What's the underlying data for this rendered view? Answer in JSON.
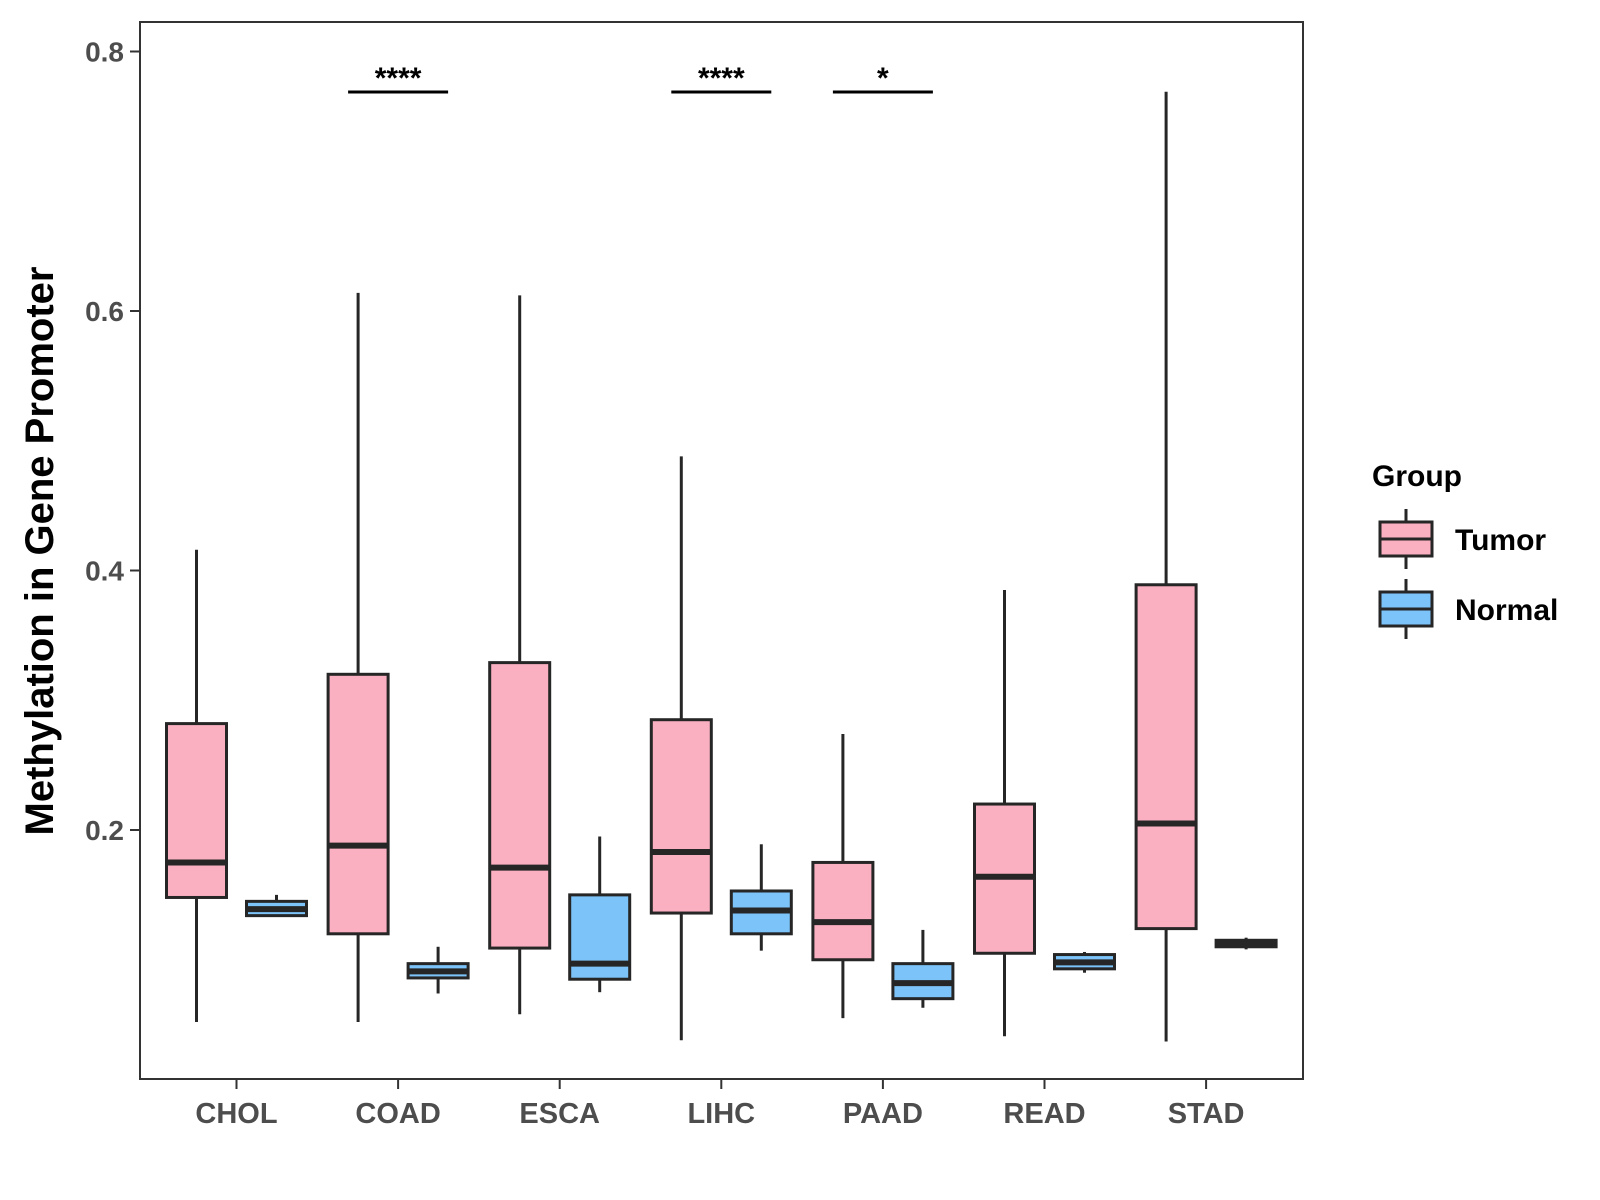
{
  "chart_data": {
    "type": "boxplot",
    "title": "",
    "xlabel": "",
    "ylabel": "Methylation in Gene Promoter",
    "ylim": [
      0.0,
      0.815
    ],
    "yticks": [
      0.2,
      0.4,
      0.6,
      0.8
    ],
    "ytick_labels": [
      "0.2",
      "0.4",
      "0.6",
      "0.8"
    ],
    "categories": [
      "CHOL",
      "COAD",
      "ESCA",
      "LIHC",
      "PAAD",
      "READ",
      "STAD"
    ],
    "grid": false,
    "legend": {
      "title": "Group",
      "position": "right",
      "entries": [
        {
          "name": "Tumor",
          "color": "#fbb0c2"
        },
        {
          "name": "Normal",
          "color": "#7cc3f9"
        }
      ]
    },
    "series": [
      {
        "name": "Tumor",
        "color": "#fbb0c2",
        "boxes": [
          {
            "category": "CHOL",
            "min": 0.052,
            "q1": 0.148,
            "median": 0.175,
            "q3": 0.282,
            "max": 0.416
          },
          {
            "category": "COAD",
            "min": 0.052,
            "q1": 0.12,
            "median": 0.188,
            "q3": 0.32,
            "max": 0.614
          },
          {
            "category": "ESCA",
            "min": 0.058,
            "q1": 0.109,
            "median": 0.171,
            "q3": 0.329,
            "max": 0.612
          },
          {
            "category": "LIHC",
            "min": 0.038,
            "q1": 0.136,
            "median": 0.183,
            "q3": 0.285,
            "max": 0.488
          },
          {
            "category": "PAAD",
            "min": 0.055,
            "q1": 0.1,
            "median": 0.129,
            "q3": 0.175,
            "max": 0.274
          },
          {
            "category": "READ",
            "min": 0.041,
            "q1": 0.105,
            "median": 0.164,
            "q3": 0.22,
            "max": 0.385
          },
          {
            "category": "STAD",
            "min": 0.037,
            "q1": 0.124,
            "median": 0.205,
            "q3": 0.389,
            "max": 0.769
          }
        ]
      },
      {
        "name": "Normal",
        "color": "#7cc3f9",
        "boxes": [
          {
            "category": "CHOL",
            "min": 0.133,
            "q1": 0.134,
            "median": 0.139,
            "q3": 0.145,
            "max": 0.15
          },
          {
            "category": "COAD",
            "min": 0.074,
            "q1": 0.086,
            "median": 0.091,
            "q3": 0.097,
            "max": 0.11
          },
          {
            "category": "ESCA",
            "min": 0.075,
            "q1": 0.085,
            "median": 0.097,
            "q3": 0.15,
            "max": 0.195
          },
          {
            "category": "LIHC",
            "min": 0.107,
            "q1": 0.12,
            "median": 0.138,
            "q3": 0.153,
            "max": 0.189
          },
          {
            "category": "PAAD",
            "min": 0.063,
            "q1": 0.07,
            "median": 0.082,
            "q3": 0.097,
            "max": 0.123
          },
          {
            "category": "READ",
            "min": 0.09,
            "q1": 0.093,
            "median": 0.098,
            "q3": 0.104,
            "max": 0.106
          },
          {
            "category": "STAD",
            "min": 0.108,
            "q1": 0.11,
            "median": 0.112,
            "q3": 0.115,
            "max": 0.117
          }
        ]
      }
    ],
    "annotations": [
      {
        "category": "COAD",
        "label": "****"
      },
      {
        "category": "LIHC",
        "label": "****"
      },
      {
        "category": "PAAD",
        "label": "*"
      }
    ]
  }
}
